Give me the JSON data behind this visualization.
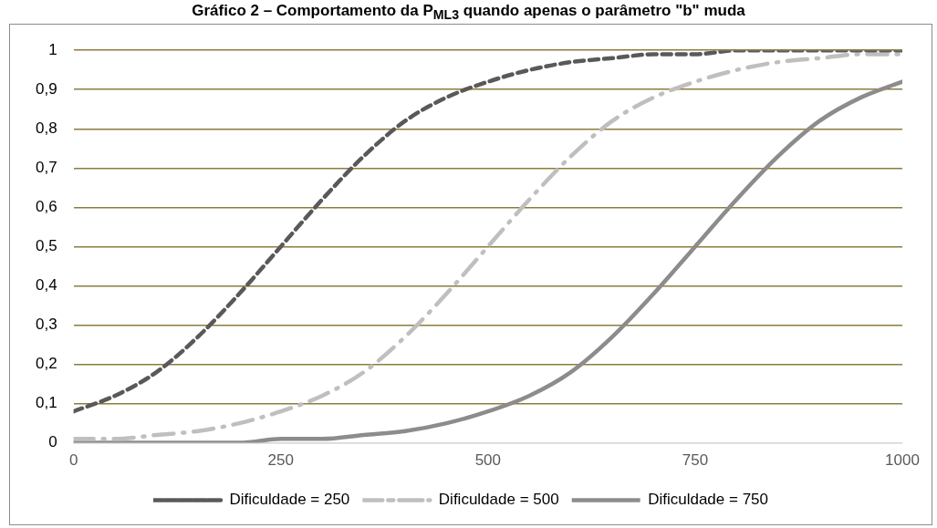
{
  "chart_data": {
    "type": "line",
    "title": "Gráfico 2 – Comportamento da P$_{ML3}$ quando apenas o parâmetro \"b\" muda",
    "x": [
      0,
      50,
      100,
      150,
      200,
      250,
      300,
      350,
      400,
      450,
      500,
      550,
      600,
      650,
      700,
      750,
      800,
      850,
      900,
      950,
      1000
    ],
    "series": [
      {
        "name": "Dificuldade = 250",
        "color": "#595959",
        "line_style": "dashed",
        "values": [
          0.08,
          0.12,
          0.18,
          0.27,
          0.38,
          0.5,
          0.62,
          0.73,
          0.82,
          0.88,
          0.92,
          0.95,
          0.97,
          0.98,
          0.99,
          0.99,
          1,
          1,
          1,
          1,
          1
        ]
      },
      {
        "name": "Dificuldade = 500",
        "color": "#bfbfbf",
        "line_style": "dashdot",
        "values": [
          0.01,
          0.01,
          0.02,
          0.03,
          0.05,
          0.08,
          0.12,
          0.18,
          0.27,
          0.38,
          0.5,
          0.62,
          0.73,
          0.82,
          0.88,
          0.92,
          0.95,
          0.97,
          0.98,
          0.99,
          0.99
        ]
      },
      {
        "name": "Dificuldade = 750",
        "color": "#8c8c8c",
        "line_style": "solid",
        "values": [
          0,
          0,
          0,
          0,
          0,
          0.01,
          0.01,
          0.02,
          0.03,
          0.05,
          0.08,
          0.12,
          0.18,
          0.27,
          0.38,
          0.5,
          0.62,
          0.73,
          0.82,
          0.88,
          0.92
        ]
      }
    ],
    "xlim": [
      0,
      1000
    ],
    "xticks": [
      0,
      250,
      500,
      750,
      1000
    ],
    "ylim": [
      0,
      1
    ],
    "yticks": [
      0,
      {
        "value": 0.1,
        "label": "0,1"
      },
      {
        "value": 0.2,
        "label": "0,2"
      },
      {
        "value": 0.3,
        "label": "0,3"
      },
      {
        "value": 0.4,
        "label": "0,4"
      },
      {
        "value": 0.5,
        "label": "0,5"
      },
      {
        "value": 0.6,
        "label": "0,6"
      },
      {
        "value": 0.7,
        "label": "0,7"
      },
      {
        "value": 0.8,
        "label": "0,8"
      },
      {
        "value": 0.9,
        "label": "0,9"
      },
      1
    ],
    "grid": "y",
    "legend": "bottom",
    "marker": "none"
  }
}
